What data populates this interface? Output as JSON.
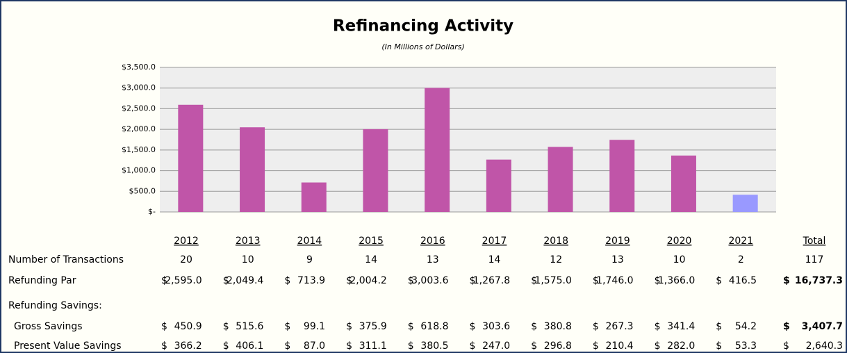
{
  "chart_data": {
    "type": "bar",
    "title": "Refinancing Activity",
    "subtitle": "(In Millions of Dollars)",
    "categories": [
      "2012",
      "2013",
      "2014",
      "2015",
      "2016",
      "2017",
      "2018",
      "2019",
      "2020",
      "2021"
    ],
    "values": [
      2595.0,
      2049.4,
      713.9,
      2004.2,
      3003.6,
      1267.8,
      1575.0,
      1746.0,
      1366.0,
      416.5
    ],
    "colors": [
      "#c055a8",
      "#c055a8",
      "#c055a8",
      "#c055a8",
      "#c055a8",
      "#c055a8",
      "#c055a8",
      "#c055a8",
      "#c055a8",
      "#9999ff"
    ],
    "ylim": [
      0,
      3500
    ],
    "yticks": [
      {
        "value": 0,
        "label": "$-"
      },
      {
        "value": 500,
        "label": "$500.0"
      },
      {
        "value": 1000,
        "label": "$1,000.0"
      },
      {
        "value": 1500,
        "label": "$1,500.0"
      },
      {
        "value": 2000,
        "label": "$2,000.0"
      },
      {
        "value": 2500,
        "label": "$2,500.0"
      },
      {
        "value": 3000,
        "label": "$3,000.0"
      },
      {
        "value": 3500,
        "label": "$3,500.0"
      }
    ],
    "grid": true
  },
  "table": {
    "total_header": "Total",
    "transactions": {
      "label": "Number of Transactions",
      "cells": [
        "20",
        "10",
        "9",
        "14",
        "13",
        "14",
        "12",
        "13",
        "10",
        "2"
      ],
      "total": "117"
    },
    "par": {
      "label": "Refunding Par",
      "cells": [
        {
          "cur": "$",
          "num": "2,595.0"
        },
        {
          "cur": "$",
          "num": "2,049.4"
        },
        {
          "cur": "$",
          "num": "713.9"
        },
        {
          "cur": "$",
          "num": "2,004.2"
        },
        {
          "cur": "$",
          "num": "3,003.6"
        },
        {
          "cur": "$",
          "num": "1,267.8"
        },
        {
          "cur": "$",
          "num": "1,575.0"
        },
        {
          "cur": "$",
          "num": "1,746.0"
        },
        {
          "cur": "$",
          "num": "1,366.0"
        },
        {
          "cur": "$",
          "num": "416.5"
        }
      ],
      "total": {
        "cur": "$",
        "num": "16,737.3"
      }
    },
    "savings_heading": "Refunding Savings:",
    "gross": {
      "label": "Gross Savings",
      "cells": [
        {
          "cur": "$",
          "num": "450.9"
        },
        {
          "cur": "$",
          "num": "515.6"
        },
        {
          "cur": "$",
          "num": "99.1"
        },
        {
          "cur": "$",
          "num": "375.9"
        },
        {
          "cur": "$",
          "num": "618.8"
        },
        {
          "cur": "$",
          "num": "303.6"
        },
        {
          "cur": "$",
          "num": "380.8"
        },
        {
          "cur": "$",
          "num": "267.3"
        },
        {
          "cur": "$",
          "num": "341.4"
        },
        {
          "cur": "$",
          "num": "54.2"
        }
      ],
      "total": {
        "cur": "$",
        "num": "3,407.7"
      }
    },
    "pv": {
      "label": "Present Value Savings",
      "cells": [
        {
          "cur": "$",
          "num": "366.2"
        },
        {
          "cur": "$",
          "num": "406.1"
        },
        {
          "cur": "$",
          "num": "87.0"
        },
        {
          "cur": "$",
          "num": "311.1"
        },
        {
          "cur": "$",
          "num": "380.5"
        },
        {
          "cur": "$",
          "num": "247.0"
        },
        {
          "cur": "$",
          "num": "296.8"
        },
        {
          "cur": "$",
          "num": "210.4"
        },
        {
          "cur": "$",
          "num": "282.0"
        },
        {
          "cur": "$",
          "num": "53.3"
        }
      ],
      "total": {
        "cur": "$",
        "num": "2,640.3"
      }
    }
  }
}
